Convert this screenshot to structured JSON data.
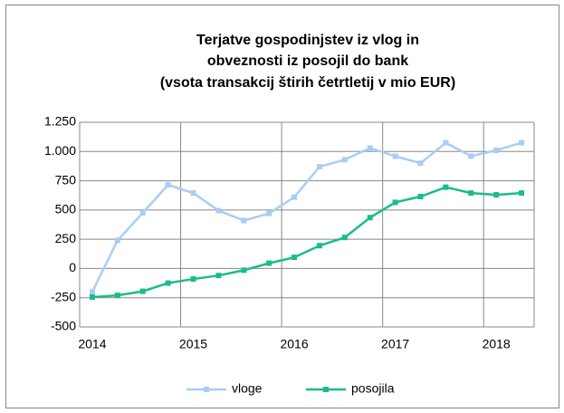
{
  "chart_data": {
    "type": "line",
    "title": [
      "Terjatve gospodinjstev iz vlog in",
      "obveznosti iz posojil do bank",
      "(vsota transakcij štirih četrtletij v mio EUR)"
    ],
    "categories": [
      "2014",
      null,
      null,
      null,
      "2015",
      null,
      null,
      null,
      "2016",
      null,
      null,
      null,
      "2017",
      null,
      null,
      null,
      "2018",
      null
    ],
    "series": [
      {
        "name": "vloge",
        "color": "#a9cdf5",
        "values": [
          -200,
          240,
          475,
          715,
          645,
          495,
          410,
          470,
          610,
          870,
          930,
          1030,
          960,
          900,
          1075,
          960,
          1010,
          1075
        ]
      },
      {
        "name": "posojila",
        "color": "#1abc8c",
        "values": [
          -245,
          -230,
          -195,
          -125,
          -90,
          -60,
          -15,
          45,
          95,
          195,
          265,
          435,
          565,
          615,
          695,
          645,
          630,
          645
        ]
      }
    ],
    "ylim": [
      -500,
      1250
    ],
    "yticks": [
      -500,
      -250,
      0,
      250,
      500,
      750,
      {
        "value": 1000,
        "label": "1.000"
      },
      {
        "value": 1250,
        "label": "1.250"
      }
    ],
    "grid": true,
    "legend": "bottom"
  }
}
